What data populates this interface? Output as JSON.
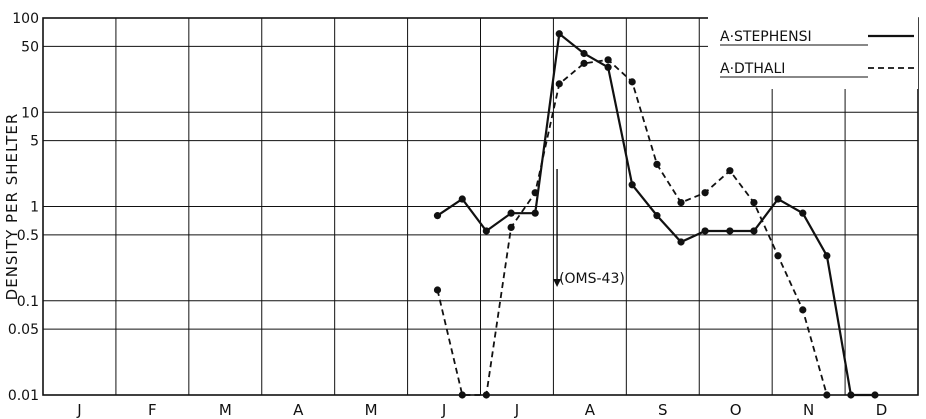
{
  "chart_data": {
    "type": "line",
    "title": "",
    "ylabel": "DENSITY PER SHELTER",
    "xlabel": "",
    "y_scale": "log",
    "ylim": [
      0.01,
      100
    ],
    "y_ticks": [
      {
        "value": 100,
        "label": "100"
      },
      {
        "value": 50,
        "label": "50"
      },
      {
        "value": 10,
        "label": "10"
      },
      {
        "value": 5,
        "label": "5"
      },
      {
        "value": 1,
        "label": "1"
      },
      {
        "value": 0.5,
        "label": "0.5"
      },
      {
        "value": 0.1,
        "label": "0.1"
      },
      {
        "value": 0.05,
        "label": "0.05"
      },
      {
        "value": 0.01,
        "label": "0.01"
      }
    ],
    "months": [
      "J",
      "F",
      "M",
      "A",
      "M",
      "J",
      "J",
      "A",
      "S",
      "O",
      "N",
      "D"
    ],
    "grid": true,
    "legend_position": "top-right",
    "series": [
      {
        "name": "A·STEPHENSI",
        "style": "solid",
        "color": "#111111",
        "points": [
          {
            "x": 5.41,
            "y": 0.8
          },
          {
            "x": 5.75,
            "y": 1.2
          },
          {
            "x": 6.08,
            "y": 0.55
          },
          {
            "x": 6.42,
            "y": 0.85
          },
          {
            "x": 6.75,
            "y": 0.85
          },
          {
            "x": 7.08,
            "y": 68
          },
          {
            "x": 7.42,
            "y": 42
          },
          {
            "x": 7.75,
            "y": 30
          },
          {
            "x": 8.08,
            "y": 1.7
          },
          {
            "x": 8.42,
            "y": 0.8
          },
          {
            "x": 8.75,
            "y": 0.42
          },
          {
            "x": 9.08,
            "y": 0.55
          },
          {
            "x": 9.42,
            "y": 0.55
          },
          {
            "x": 9.75,
            "y": 0.55
          },
          {
            "x": 10.08,
            "y": 1.2
          },
          {
            "x": 10.42,
            "y": 0.85
          },
          {
            "x": 10.75,
            "y": 0.3
          },
          {
            "x": 11.08,
            "y": 0.01
          },
          {
            "x": 11.41,
            "y": 0.01
          }
        ]
      },
      {
        "name": "A·DTHALI",
        "style": "dashed",
        "color": "#111111",
        "points": [
          {
            "x": 5.41,
            "y": 0.13
          },
          {
            "x": 5.75,
            "y": 0.01
          },
          {
            "x": 6.08,
            "y": 0.01
          },
          {
            "x": 6.42,
            "y": 0.6
          },
          {
            "x": 6.75,
            "y": 1.4
          },
          {
            "x": 7.08,
            "y": 20
          },
          {
            "x": 7.42,
            "y": 33
          },
          {
            "x": 7.75,
            "y": 36
          },
          {
            "x": 8.08,
            "y": 21
          },
          {
            "x": 8.42,
            "y": 2.8
          },
          {
            "x": 8.75,
            "y": 1.1
          },
          {
            "x": 9.08,
            "y": 1.4
          },
          {
            "x": 9.42,
            "y": 2.4
          },
          {
            "x": 9.75,
            "y": 1.1
          },
          {
            "x": 10.08,
            "y": 0.3
          },
          {
            "x": 10.42,
            "y": 0.08
          },
          {
            "x": 10.75,
            "y": 0.01
          }
        ]
      }
    ],
    "annotations": [
      {
        "text": "(OMS-43)",
        "arrow_x": 7.05,
        "arrow_from_y": 2.5,
        "arrow_to_y": 0.14
      }
    ]
  }
}
